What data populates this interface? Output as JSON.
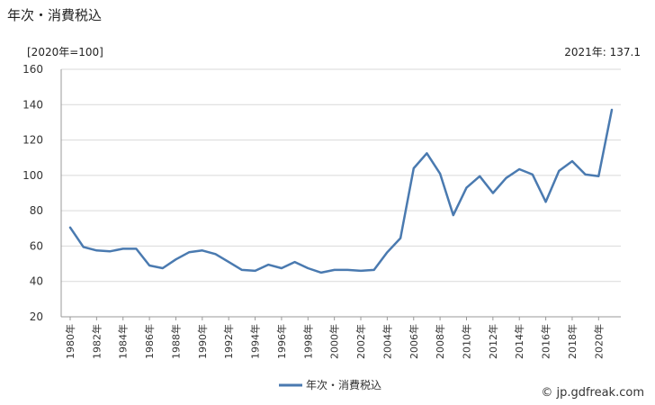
{
  "title": "年次・消費税込",
  "unit_label": "[2020年=100]",
  "latest_label": "2021年: 137.1",
  "credit": "© jp.gdfreak.com",
  "colors": {
    "series": "#4a7ab0",
    "grid": "#d9d9d9",
    "axis": "#999999"
  },
  "chart_data": {
    "type": "line",
    "title": "年次・消費税込",
    "ylabel": "[2020年=100]",
    "ylim": [
      20,
      160
    ],
    "yticks": [
      20,
      40,
      60,
      80,
      100,
      120,
      140,
      160
    ],
    "grid": true,
    "legend_position": "bottom",
    "x": [
      1980,
      1981,
      1982,
      1983,
      1984,
      1985,
      1986,
      1987,
      1988,
      1989,
      1990,
      1991,
      1992,
      1993,
      1994,
      1995,
      1996,
      1997,
      1998,
      1999,
      2000,
      2001,
      2002,
      2003,
      2004,
      2005,
      2006,
      2007,
      2008,
      2009,
      2010,
      2011,
      2012,
      2013,
      2014,
      2015,
      2016,
      2017,
      2018,
      2019,
      2020,
      2021
    ],
    "x_tick_labels": [
      "1980年",
      "1982年",
      "1984年",
      "1986年",
      "1988年",
      "1990年",
      "1992年",
      "1994年",
      "1996年",
      "1998年",
      "2000年",
      "2002年",
      "2004年",
      "2006年",
      "2008年",
      "2010年",
      "2012年",
      "2014年",
      "2016年",
      "2018年",
      "2020年"
    ],
    "series": [
      {
        "name": "年次・消費税込",
        "values": [
          70.5,
          59.5,
          57.5,
          57.0,
          58.5,
          58.5,
          49.0,
          47.5,
          52.5,
          56.5,
          57.5,
          55.5,
          51.0,
          46.5,
          46.0,
          49.5,
          47.5,
          51.0,
          47.5,
          45.0,
          46.5,
          46.5,
          46.0,
          46.5,
          56.5,
          64.5,
          104.0,
          112.5,
          101.0,
          77.5,
          93.0,
          99.5,
          90.0,
          98.5,
          103.5,
          100.5,
          85.0,
          102.5,
          108.0,
          100.5,
          99.5,
          137.1
        ]
      }
    ]
  }
}
